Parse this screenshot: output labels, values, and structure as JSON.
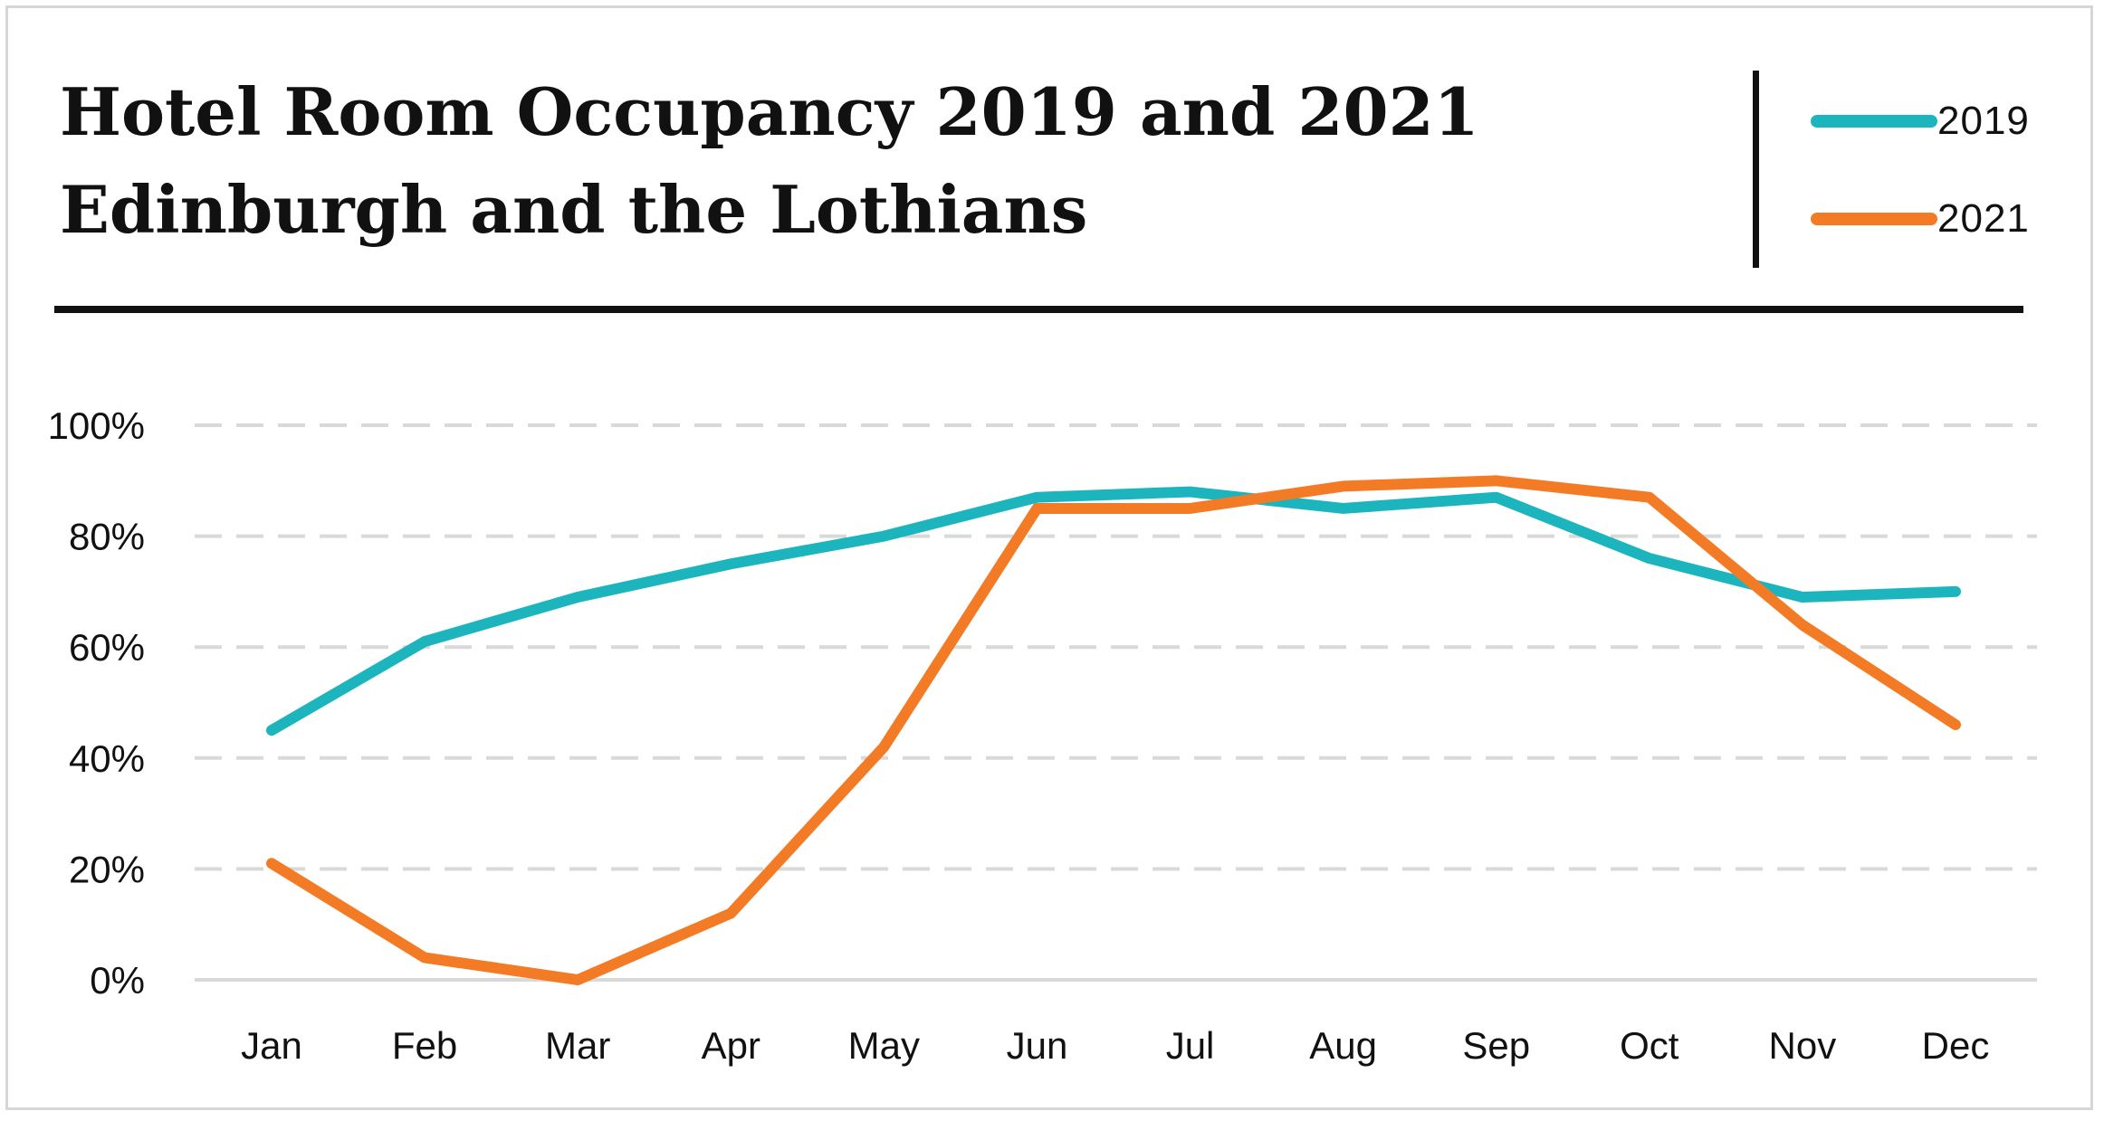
{
  "title_line_1": "Hotel Room Occupancy 2019 and 2021",
  "title_line_2": "Edinburgh and the Lothians",
  "legend": [
    {
      "label": "2019",
      "color": "#1db5bd"
    },
    {
      "label": "2021",
      "color": "#f47b25"
    }
  ],
  "chart_data": {
    "type": "line",
    "categories": [
      "Jan",
      "Feb",
      "Mar",
      "Apr",
      "May",
      "Jun",
      "Jul",
      "Aug",
      "Sep",
      "Oct",
      "Nov",
      "Dec"
    ],
    "series": [
      {
        "name": "2019",
        "color": "#1db5bd",
        "values": [
          45,
          61,
          69,
          75,
          80,
          87,
          88,
          85,
          87,
          76,
          69,
          70
        ]
      },
      {
        "name": "2021",
        "color": "#f47b25",
        "values": [
          21,
          4,
          0,
          12,
          42,
          85,
          85,
          89,
          90,
          87,
          64,
          46
        ]
      }
    ],
    "ylim": [
      0,
      100
    ],
    "yticks": [
      0,
      20,
      40,
      60,
      80,
      100
    ],
    "ytick_labels": [
      "0%",
      "20%",
      "40%",
      "60%",
      "80%",
      "100%"
    ],
    "grid": "horizontal-dashed",
    "legend_position": "top-right"
  }
}
